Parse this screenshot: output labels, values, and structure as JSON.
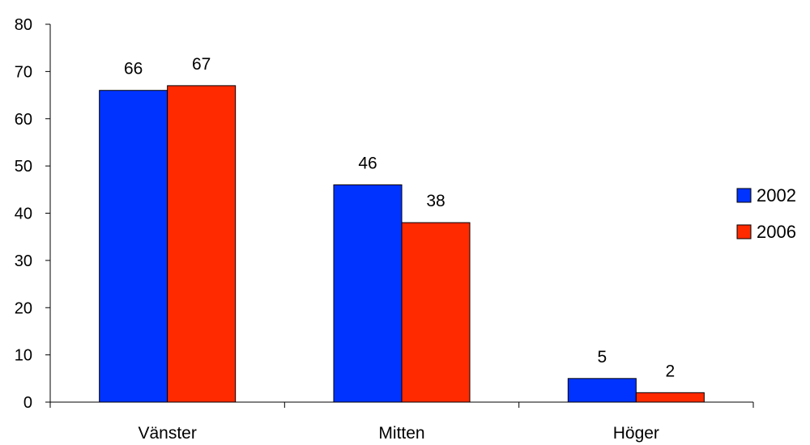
{
  "chart_data": {
    "type": "bar",
    "categories": [
      "Vänster",
      "Mitten",
      "Höger"
    ],
    "series": [
      {
        "name": "2002",
        "values": [
          66,
          46,
          5
        ],
        "color": "#0033FF"
      },
      {
        "name": "2006",
        "values": [
          67,
          38,
          2
        ],
        "color": "#FF2A00"
      }
    ],
    "title": "",
    "xlabel": "",
    "ylabel": "",
    "ylim": [
      0,
      80
    ],
    "yticks": [
      0,
      10,
      20,
      30,
      40,
      50,
      60,
      70,
      80
    ],
    "data_labels": true,
    "grid": false,
    "legend": {
      "position": "right"
    }
  }
}
